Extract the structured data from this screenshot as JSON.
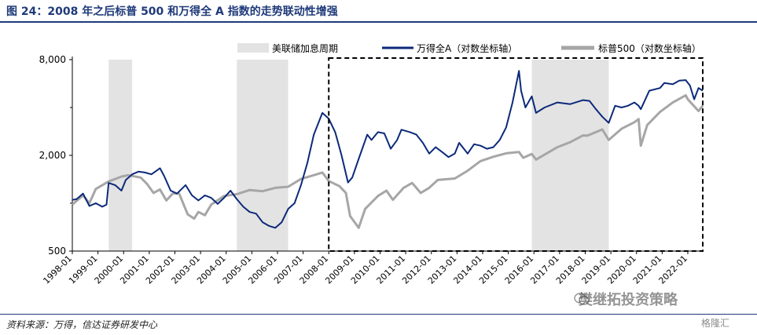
{
  "header": {
    "title": "图 24：2008 年之后标普 500 和万得全 A 指数的走势联动性增强"
  },
  "footer": {
    "source": "资料来源：万得，信达证券研发中心",
    "watermark": "樊继拓投资策略",
    "watermark2": "格隆汇"
  },
  "chart_data": {
    "type": "line",
    "title": "",
    "xlabel": "",
    "ylabel": "",
    "y_scale": "log",
    "ylim": [
      500,
      8000
    ],
    "y_ticks": [
      500,
      2000,
      8000
    ],
    "y_tick_labels": [
      "500",
      "2,000",
      "8,000"
    ],
    "x_range": [
      "1998-01",
      "2022-08"
    ],
    "x_tick_labels": [
      "1998-01",
      "1999-01",
      "2000-01",
      "2001-01",
      "2002-01",
      "2003-01",
      "2004-01",
      "2005-01",
      "2006-01",
      "2007-01",
      "2008-01",
      "2009-01",
      "2010-01",
      "2011-01",
      "2012-01",
      "2013-01",
      "2014-01",
      "2015-01",
      "2016-01",
      "2017-01",
      "2018-01",
      "2019-01",
      "2020-01",
      "2021-01",
      "2022-01"
    ],
    "grid": false,
    "legend_position": "top",
    "shaded_periods": {
      "name": "美联储加息周期",
      "color": "#e3e3e3",
      "ranges": [
        [
          "1999-06",
          "2000-05"
        ],
        [
          "2004-06",
          "2006-06"
        ],
        [
          "2015-12",
          "2018-12"
        ]
      ]
    },
    "highlight_box": {
      "from": "2008-01",
      "to": "2022-08"
    },
    "series": [
      {
        "name": "万得全A（对数坐标轴）",
        "color": "#0c2a7a",
        "points": [
          [
            "1998-01",
            1050
          ],
          [
            "1998-03",
            1060
          ],
          [
            "1998-06",
            1150
          ],
          [
            "1998-09",
            960
          ],
          [
            "1998-12",
            1000
          ],
          [
            "1999-03",
            950
          ],
          [
            "1999-05",
            980
          ],
          [
            "1999-06",
            1340
          ],
          [
            "1999-09",
            1300
          ],
          [
            "1999-12",
            1200
          ],
          [
            "2000-02",
            1400
          ],
          [
            "2000-05",
            1520
          ],
          [
            "2000-08",
            1580
          ],
          [
            "2000-11",
            1560
          ],
          [
            "2001-02",
            1520
          ],
          [
            "2001-06",
            1660
          ],
          [
            "2001-08",
            1480
          ],
          [
            "2001-11",
            1200
          ],
          [
            "2002-02",
            1150
          ],
          [
            "2002-06",
            1300
          ],
          [
            "2002-09",
            1120
          ],
          [
            "2002-12",
            1040
          ],
          [
            "2003-03",
            1120
          ],
          [
            "2003-06",
            1080
          ],
          [
            "2003-09",
            990
          ],
          [
            "2003-12",
            1080
          ],
          [
            "2004-03",
            1200
          ],
          [
            "2004-06",
            1060
          ],
          [
            "2004-09",
            950
          ],
          [
            "2004-12",
            880
          ],
          [
            "2005-03",
            860
          ],
          [
            "2005-06",
            760
          ],
          [
            "2005-09",
            720
          ],
          [
            "2005-12",
            700
          ],
          [
            "2006-03",
            760
          ],
          [
            "2006-06",
            920
          ],
          [
            "2006-09",
            1000
          ],
          [
            "2006-12",
            1300
          ],
          [
            "2007-03",
            1800
          ],
          [
            "2007-06",
            2700
          ],
          [
            "2007-10",
            3700
          ],
          [
            "2008-01",
            3400
          ],
          [
            "2008-04",
            2800
          ],
          [
            "2008-07",
            2000
          ],
          [
            "2008-10",
            1350
          ],
          [
            "2008-12",
            1450
          ],
          [
            "2009-03",
            1900
          ],
          [
            "2009-07",
            2700
          ],
          [
            "2009-09",
            2500
          ],
          [
            "2009-12",
            2800
          ],
          [
            "2010-03",
            2750
          ],
          [
            "2010-06",
            2200
          ],
          [
            "2010-09",
            2500
          ],
          [
            "2010-11",
            2900
          ],
          [
            "2011-03",
            2800
          ],
          [
            "2011-06",
            2700
          ],
          [
            "2011-09",
            2400
          ],
          [
            "2011-12",
            2050
          ],
          [
            "2012-03",
            2250
          ],
          [
            "2012-06",
            2100
          ],
          [
            "2012-09",
            1950
          ],
          [
            "2012-12",
            2050
          ],
          [
            "2013-02",
            2400
          ],
          [
            "2013-06",
            2050
          ],
          [
            "2013-09",
            2350
          ],
          [
            "2013-12",
            2300
          ],
          [
            "2014-03",
            2200
          ],
          [
            "2014-06",
            2250
          ],
          [
            "2014-09",
            2500
          ],
          [
            "2014-12",
            3000
          ],
          [
            "2015-03",
            4300
          ],
          [
            "2015-06",
            6800
          ],
          [
            "2015-07",
            5100
          ],
          [
            "2015-09",
            4000
          ],
          [
            "2015-12",
            4700
          ],
          [
            "2016-02",
            3700
          ],
          [
            "2016-06",
            4000
          ],
          [
            "2016-12",
            4300
          ],
          [
            "2017-06",
            4200
          ],
          [
            "2017-12",
            4450
          ],
          [
            "2018-03",
            4400
          ],
          [
            "2018-06",
            3900
          ],
          [
            "2018-09",
            3500
          ],
          [
            "2018-12",
            3200
          ],
          [
            "2019-03",
            4100
          ],
          [
            "2019-06",
            4000
          ],
          [
            "2019-09",
            4100
          ],
          [
            "2019-12",
            4300
          ],
          [
            "2020-02",
            4100
          ],
          [
            "2020-03",
            3900
          ],
          [
            "2020-07",
            5100
          ],
          [
            "2020-12",
            5300
          ],
          [
            "2021-02",
            5700
          ],
          [
            "2021-06",
            5600
          ],
          [
            "2021-09",
            5900
          ],
          [
            "2021-12",
            5950
          ],
          [
            "2022-02",
            5500
          ],
          [
            "2022-04",
            4500
          ],
          [
            "2022-06",
            5300
          ],
          [
            "2022-08",
            5100
          ]
        ]
      },
      {
        "name": "标普500（对数坐标轴）",
        "color": "#a6a6a6",
        "points": [
          [
            "1998-01",
            980
          ],
          [
            "1998-06",
            1120
          ],
          [
            "1998-09",
            1000
          ],
          [
            "1998-12",
            1230
          ],
          [
            "1999-06",
            1370
          ],
          [
            "1999-12",
            1470
          ],
          [
            "2000-03",
            1500
          ],
          [
            "2000-09",
            1450
          ],
          [
            "2000-12",
            1320
          ],
          [
            "2001-03",
            1160
          ],
          [
            "2001-06",
            1220
          ],
          [
            "2001-09",
            1040
          ],
          [
            "2001-12",
            1150
          ],
          [
            "2002-03",
            1150
          ],
          [
            "2002-07",
            850
          ],
          [
            "2002-10",
            800
          ],
          [
            "2002-12",
            880
          ],
          [
            "2003-03",
            840
          ],
          [
            "2003-06",
            980
          ],
          [
            "2003-12",
            1110
          ],
          [
            "2004-06",
            1140
          ],
          [
            "2004-12",
            1210
          ],
          [
            "2005-06",
            1190
          ],
          [
            "2005-12",
            1250
          ],
          [
            "2006-06",
            1270
          ],
          [
            "2006-12",
            1420
          ],
          [
            "2007-06",
            1500
          ],
          [
            "2007-10",
            1560
          ],
          [
            "2008-01",
            1380
          ],
          [
            "2008-06",
            1280
          ],
          [
            "2008-09",
            1160
          ],
          [
            "2008-11",
            830
          ],
          [
            "2009-03",
            700
          ],
          [
            "2009-06",
            920
          ],
          [
            "2009-12",
            1110
          ],
          [
            "2010-04",
            1200
          ],
          [
            "2010-07",
            1050
          ],
          [
            "2010-12",
            1250
          ],
          [
            "2011-04",
            1340
          ],
          [
            "2011-08",
            1160
          ],
          [
            "2011-12",
            1250
          ],
          [
            "2012-04",
            1400
          ],
          [
            "2012-12",
            1430
          ],
          [
            "2013-06",
            1600
          ],
          [
            "2013-12",
            1840
          ],
          [
            "2014-06",
            1960
          ],
          [
            "2014-12",
            2060
          ],
          [
            "2015-06",
            2100
          ],
          [
            "2015-08",
            1930
          ],
          [
            "2015-12",
            2040
          ],
          [
            "2016-02",
            1880
          ],
          [
            "2016-12",
            2250
          ],
          [
            "2017-06",
            2420
          ],
          [
            "2017-12",
            2670
          ],
          [
            "2018-02",
            2660
          ],
          [
            "2018-09",
            2910
          ],
          [
            "2018-12",
            2500
          ],
          [
            "2019-06",
            2940
          ],
          [
            "2019-12",
            3230
          ],
          [
            "2020-02",
            3380
          ],
          [
            "2020-03",
            2300
          ],
          [
            "2020-06",
            3100
          ],
          [
            "2020-12",
            3750
          ],
          [
            "2021-06",
            4300
          ],
          [
            "2021-12",
            4770
          ],
          [
            "2022-01",
            4500
          ],
          [
            "2022-06",
            3800
          ],
          [
            "2022-08",
            4100
          ]
        ]
      }
    ]
  }
}
